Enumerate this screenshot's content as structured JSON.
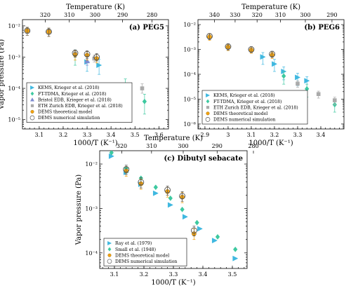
{
  "chart_data": [
    {
      "id": "a",
      "type": "scatter",
      "title": "(a) PEG5",
      "xlabel": "1000/T (K⁻¹)",
      "ylabel": "Vapor pressure (Pa)",
      "top_xlabel": "Temperature (K)",
      "xlim": [
        3.03,
        3.64
      ],
      "ylim_log10": [
        -5.3,
        -1.8
      ],
      "y_scale": "log",
      "xticks": [
        3.1,
        3.2,
        3.3,
        3.4,
        3.5,
        3.6
      ],
      "xtick_labels": [
        "3.1",
        "3.2",
        "3.3",
        "3.4",
        "3.5",
        "3.6"
      ],
      "yticks_log10": [
        -5,
        -4,
        -3,
        -2
      ],
      "ytick_labels": [
        "10⁻⁵",
        "10⁻⁴",
        "10⁻³",
        "10⁻²"
      ],
      "top_ticks_T": [
        320,
        310,
        300,
        290,
        280
      ],
      "top_tick_labels": [
        "320",
        "310",
        "300",
        "290",
        "280"
      ],
      "legend_position": "bottom-left",
      "series": [
        {
          "name": "KEMS, Krieger et al. (2018)",
          "marker": "tri-right",
          "color": "#3FB8E0",
          "points": [
            [
              3.3,
              0.0007,
              0.00035,
              0.001
            ],
            [
              3.35,
              0.00055,
              0.00028,
              0.00085
            ]
          ]
        },
        {
          "name": "FT-TDMA, Krieger et al. (2018)",
          "marker": "diamond",
          "color": "#3DC9A0",
          "points": [
            [
              3.25,
              0.00115,
              0.00055,
              0.0017
            ],
            [
              3.46,
              0.000125,
              6e-05,
              0.0002
            ],
            [
              3.54,
              3.8e-05,
              1.5e-05,
              6.5e-05
            ]
          ]
        },
        {
          "name": "Bristol EDB, Krieger et al. (2018)",
          "marker": "triangle-up",
          "color": "#7E8BD0",
          "points": [
            [
              3.3,
              0.00075,
              0.00055,
              0.001
            ]
          ]
        },
        {
          "name": "ETH Zurich EDB, Krieger et al. (2018)",
          "marker": "square",
          "color": "#AAAAAA",
          "points": [
            [
              3.25,
              0.0013,
              0.001,
              0.0017
            ],
            [
              3.33,
              0.0009,
              0.0007,
              0.00115
            ],
            [
              3.53,
              0.0001,
              7e-05,
              0.00014
            ]
          ]
        },
        {
          "name": "DEMS theoretical model",
          "marker": "circle-filled",
          "color": "#F2A20F",
          "points": [
            [
              3.05,
              0.007,
              0.005,
              0.009
            ],
            [
              3.14,
              0.0065,
              0.0046,
              0.0085
            ],
            [
              3.25,
              0.0012,
              0.0008,
              0.0016
            ],
            [
              3.3,
              0.00115,
              0.0008,
              0.0015
            ],
            [
              3.34,
              0.0009,
              0.00065,
              0.0012
            ]
          ]
        },
        {
          "name": "DEMS numerical simulation",
          "marker": "circle-open",
          "color": "#555555",
          "points": [
            [
              3.05,
              0.007,
              0.005,
              0.009
            ],
            [
              3.14,
              0.0065,
              0.0046,
              0.0085
            ],
            [
              3.25,
              0.00135,
              0.001,
              0.0017
            ],
            [
              3.3,
              0.00125,
              0.0009,
              0.0016
            ],
            [
              3.34,
              0.001,
              0.00075,
              0.0013
            ]
          ]
        }
      ]
    },
    {
      "id": "b",
      "type": "scatter",
      "title": "(b) PEG6",
      "xlabel": "1000/T (K⁻¹)",
      "ylabel": "",
      "top_xlabel": "Temperature (K)",
      "xlim": [
        2.87,
        3.5
      ],
      "ylim_log10": [
        -6.2,
        -1.8
      ],
      "y_scale": "log",
      "xticks": [
        2.9,
        3.0,
        3.1,
        3.2,
        3.3,
        3.4
      ],
      "xtick_labels": [
        "2.9",
        "3",
        "3.1",
        "3.2",
        "3.3",
        "3.4"
      ],
      "yticks_log10": [
        -6,
        -5,
        -4,
        -3,
        -2
      ],
      "ytick_labels": [
        "10⁻⁶",
        "10⁻⁵",
        "10⁻⁴",
        "10⁻³",
        "10⁻²"
      ],
      "top_ticks_T": [
        340,
        330,
        320,
        310,
        300,
        290
      ],
      "top_tick_labels": [
        "340",
        "330",
        "320",
        "310",
        "300",
        "290"
      ],
      "legend_position": "bottom-left",
      "series": [
        {
          "name": "KEMS, Krieger et al. (2018)",
          "marker": "tri-right",
          "color": "#3FB8E0",
          "points": [
            [
              3.15,
              0.0005,
              0.00025,
              0.00075
            ],
            [
              3.2,
              0.00026,
              0.00013,
              0.0004
            ],
            [
              3.24,
              0.00013,
              6e-05,
              0.0002
            ],
            [
              3.3,
              7.5e-05,
              3.5e-05,
              0.00011
            ],
            [
              3.34,
              5.5e-05,
              2.5e-05,
              8e-05
            ]
          ]
        },
        {
          "name": "FT-TDMA, Krieger et al. (2018)",
          "marker": "diamond",
          "color": "#3DC9A0",
          "points": [
            [
              3.24,
              8.5e-05,
              4e-05,
              0.00013
            ],
            [
              3.34,
              2.6e-05,
              1.2e-05,
              4e-05
            ],
            [
              3.46,
              6e-06,
              3e-06,
              9e-06
            ]
          ]
        },
        {
          "name": "ETH Zurich EDB, Krieger et al. (2018)",
          "marker": "square",
          "color": "#AAAAAA",
          "points": [
            [
              3.3,
              4.2e-05,
              3e-05,
              5.5e-05
            ],
            [
              3.39,
              1.6e-05,
              1.1e-05,
              2.1e-05
            ],
            [
              3.46,
              9e-06,
              6e-06,
              1.2e-05
            ]
          ]
        },
        {
          "name": "DEMS theoretical model",
          "marker": "circle-filled",
          "color": "#F2A20F",
          "points": [
            [
              2.92,
              0.0032,
              0.0023,
              0.0042
            ],
            [
              3.0,
              0.00125,
              0.0009,
              0.0016
            ],
            [
              3.1,
              0.00095,
              0.0007,
              0.00125
            ],
            [
              3.19,
              0.0006,
              0.00043,
              0.00078
            ]
          ]
        },
        {
          "name": "DEMS numerical simulation",
          "marker": "circle-open",
          "color": "#555555",
          "points": [
            [
              2.92,
              0.0034,
              0.0025,
              0.0044
            ],
            [
              3.0,
              0.0013,
              0.00095,
              0.0017
            ],
            [
              3.1,
              0.001,
              0.00075,
              0.0013
            ],
            [
              3.19,
              0.00065,
              0.00048,
              0.00085
            ]
          ]
        }
      ]
    },
    {
      "id": "c",
      "type": "scatter",
      "title": "(c) Dibutyl sebacate",
      "xlabel": "1000/T (K⁻¹)",
      "ylabel": "Vapor pressure (Pa)",
      "top_xlabel": "Temperature (K)",
      "xlim": [
        3.05,
        3.55
      ],
      "ylim_log10": [
        -4.35,
        -1.7
      ],
      "y_scale": "log",
      "xticks": [
        3.1,
        3.2,
        3.3,
        3.4,
        3.5
      ],
      "xtick_labels": [
        "3.1",
        "3.2",
        "3.3",
        "3.4",
        "3.5"
      ],
      "yticks_log10": [
        -4,
        -3,
        -2
      ],
      "ytick_labels": [
        "10⁻⁴",
        "10⁻³",
        "10⁻²"
      ],
      "top_ticks_T": [
        320,
        310,
        300,
        290,
        280
      ],
      "top_tick_labels": [
        "320",
        "310",
        "300",
        "290",
        "280"
      ],
      "legend_position": "bottom-left",
      "series": [
        {
          "name": "Ray et al. (1979)",
          "marker": "tri-right",
          "color": "#3FB8E0",
          "points": [
            [
              3.09,
              0.015
            ],
            [
              3.14,
              0.0065
            ],
            [
              3.19,
              0.0035
            ],
            [
              3.24,
              0.0022
            ],
            [
              3.29,
              0.0012
            ],
            [
              3.34,
              0.00065
            ],
            [
              3.39,
              0.00035
            ],
            [
              3.44,
              0.00019
            ],
            [
              3.51,
              7.5e-05
            ]
          ]
        },
        {
          "name": "Small et al. (1948)",
          "marker": "diamond",
          "color": "#3DC9A0",
          "points": [
            [
              3.09,
              0.018
            ],
            [
              3.14,
              0.008
            ],
            [
              3.19,
              0.0048
            ],
            [
              3.24,
              0.003
            ],
            [
              3.29,
              0.0017
            ],
            [
              3.33,
              0.00095
            ],
            [
              3.38,
              0.00048
            ],
            [
              3.45,
              0.00023
            ],
            [
              3.51,
              0.00012
            ]
          ]
        },
        {
          "name": "DEMS theoretical model",
          "marker": "circle-filled",
          "color": "#F2A20F",
          "points": [
            [
              3.14,
              0.007,
              0.0053,
              0.0088
            ],
            [
              3.19,
              0.0036,
              0.0027,
              0.0046
            ],
            [
              3.28,
              0.0024,
              0.0018,
              0.003
            ],
            [
              3.33,
              0.0018,
              0.00135,
              0.0023
            ],
            [
              3.37,
              0.00027,
              0.0002,
              0.00035
            ]
          ]
        },
        {
          "name": "DEMS numerical simulation",
          "marker": "circle-open",
          "color": "#555555",
          "points": [
            [
              3.14,
              0.0076,
              0.0058,
              0.0094
            ],
            [
              3.19,
              0.0039,
              0.0029,
              0.0049
            ],
            [
              3.28,
              0.0026,
              0.002,
              0.0032
            ],
            [
              3.33,
              0.0019,
              0.00145,
              0.0024
            ],
            [
              3.37,
              0.00032,
              0.00024,
              0.0004
            ]
          ]
        }
      ]
    }
  ]
}
